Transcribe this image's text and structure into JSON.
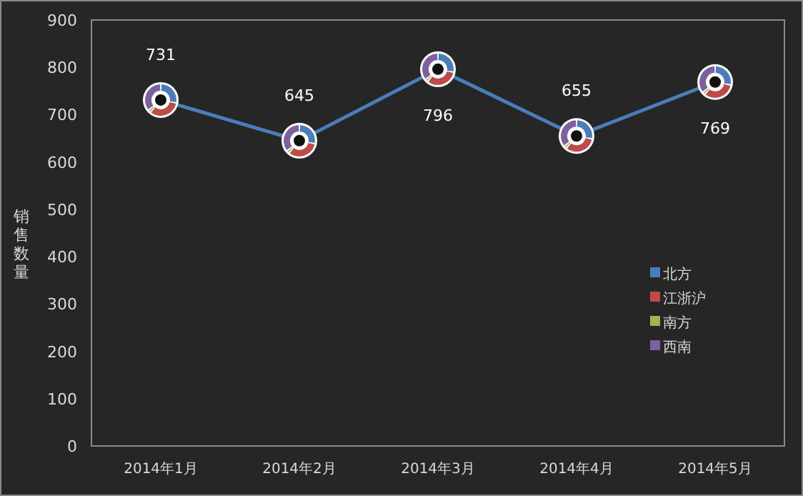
{
  "chart_data": {
    "type": "line",
    "categories": [
      "2014年1月",
      "2014年2月",
      "2014年3月",
      "2014年4月",
      "2014年5月"
    ],
    "values": [
      731,
      645,
      796,
      655,
      769
    ],
    "color": "#4a7ebb",
    "ylabel": "销售数量",
    "ylim": [
      0,
      900
    ],
    "yticks": [
      0,
      100,
      200,
      300,
      400,
      500,
      600,
      700,
      800,
      900
    ],
    "data_labels": true,
    "grid": false,
    "line_style": "solid",
    "marker": "circle",
    "annotations": [
      "北方",
      "江浙沪",
      "南方",
      "西南"
    ]
  }
}
